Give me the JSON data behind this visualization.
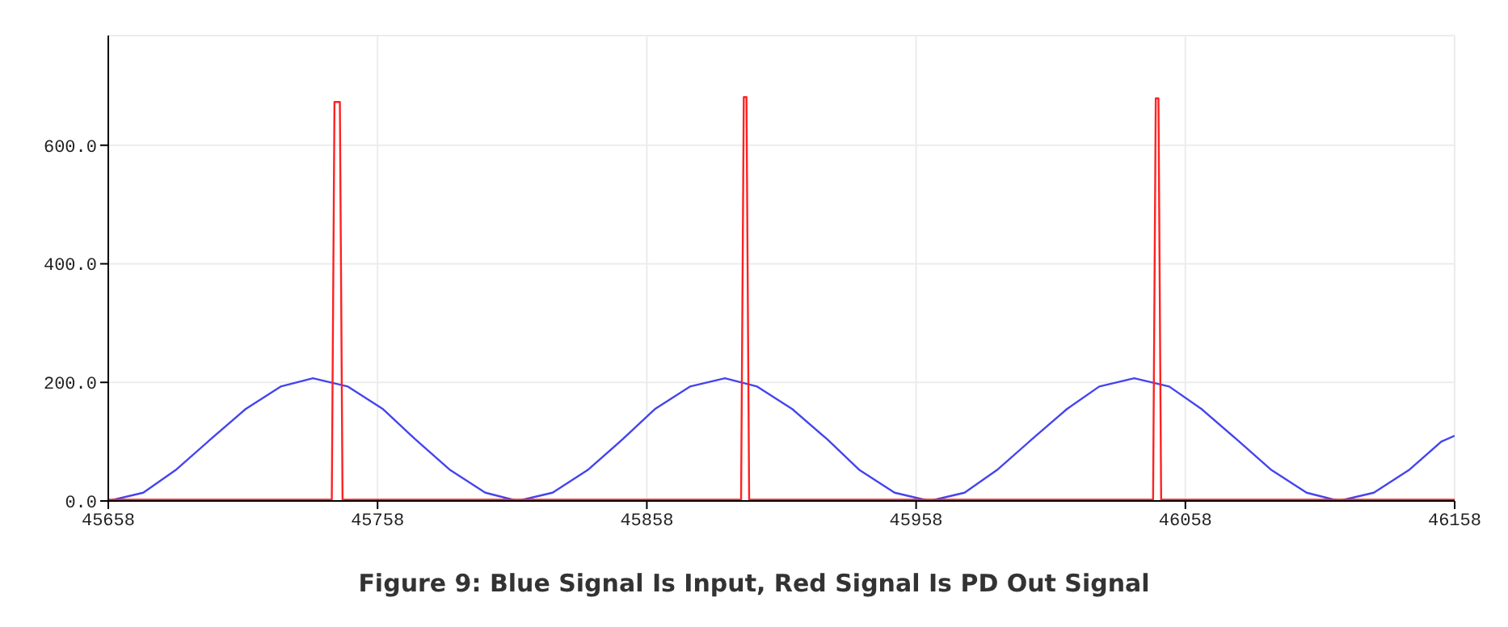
{
  "chart_data": {
    "type": "line",
    "title": "Figure 9: Blue Signal Is Input, Red Signal Is PD Out Signal",
    "xlim": [
      45658,
      46158
    ],
    "xticks": [
      45658,
      45758,
      45858,
      45958,
      46058,
      46158
    ],
    "ylim": [
      0,
      785
    ],
    "yticks": [
      {
        "value": 0,
        "label": "0.0"
      },
      {
        "value": 200,
        "label": "200.0"
      },
      {
        "value": 400,
        "label": "400.0"
      },
      {
        "value": 600,
        "label": "600.0"
      }
    ],
    "grid": true,
    "marker": "none",
    "line_style": "solid",
    "series": [
      {
        "color": "#4444ee",
        "x": [
          45658,
          45671,
          45683,
          45696,
          45709,
          45722,
          45734,
          45747,
          45760,
          45772,
          45785,
          45798,
          45810,
          45823,
          45836,
          45849,
          45861,
          45874,
          45887,
          45899,
          45912,
          45925,
          45937,
          45950,
          45963,
          45976,
          45988,
          46001,
          46014,
          46026,
          46039,
          46052,
          46064,
          46077,
          46090,
          46103,
          46115,
          46128,
          46141,
          46153,
          46158
        ],
        "values": [
          0,
          14,
          52,
          104,
          155,
          193,
          207,
          193,
          155,
          104,
          52,
          14,
          0,
          14,
          52,
          104,
          155,
          193,
          207,
          193,
          155,
          104,
          52,
          14,
          0,
          14,
          52,
          104,
          155,
          193,
          207,
          193,
          155,
          104,
          52,
          14,
          0,
          14,
          52,
          100,
          110
        ]
      },
      {
        "color": "#ff2222",
        "x": [
          45658,
          45741,
          45742,
          45744,
          45745,
          45893,
          45894,
          45895,
          45896,
          46046,
          46047,
          46048,
          46049,
          46158
        ],
        "values": [
          2,
          2,
          673,
          673,
          2,
          2,
          681,
          681,
          2,
          2,
          679,
          679,
          2,
          2
        ]
      }
    ]
  }
}
